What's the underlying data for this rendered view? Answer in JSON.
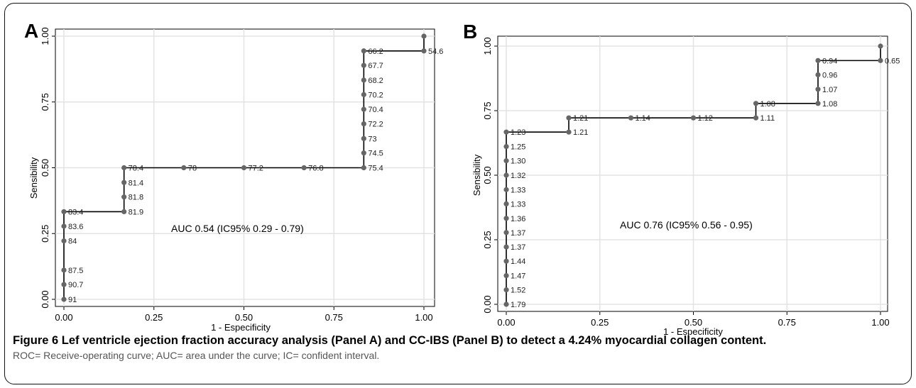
{
  "figure": {
    "caption_title": "Figure 6 Lef ventricle ejection fraction accuracy analysis (Panel A) and CC-IBS (Panel B) to detect a 4.24% myocardial collagen content.",
    "caption_note": "ROC= Receive-operating curve; AUC= area under the curve; IC= confident interval."
  },
  "chart_data": [
    {
      "type": "line",
      "panel_label": "A",
      "xlabel": "1 - Especificity",
      "ylabel": "Sensibility",
      "xlim": [
        0,
        1
      ],
      "ylim": [
        0,
        1
      ],
      "xticks": [
        "0.00",
        "0.25",
        "0.50",
        "0.75",
        "1.00"
      ],
      "yticks": [
        "0.00",
        "0.25",
        "0.50",
        "0.75",
        "1.00"
      ],
      "grid": true,
      "annotation": "AUC 0.54 (IC95% 0.29 - 0.79)",
      "points": [
        {
          "x": 0.0,
          "y": 0.0,
          "label": "91"
        },
        {
          "x": 0.0,
          "y": 0.056,
          "label": "90.7"
        },
        {
          "x": 0.0,
          "y": 0.111,
          "label": "87.5"
        },
        {
          "x": 0.0,
          "y": 0.222,
          "label": "84"
        },
        {
          "x": 0.0,
          "y": 0.278,
          "label": "83.6"
        },
        {
          "x": 0.0,
          "y": 0.333,
          "label": "83.4"
        },
        {
          "x": 0.167,
          "y": 0.333,
          "label": "81.9"
        },
        {
          "x": 0.167,
          "y": 0.389,
          "label": "81.8"
        },
        {
          "x": 0.167,
          "y": 0.444,
          "label": "81.4"
        },
        {
          "x": 0.167,
          "y": 0.5,
          "label": "78.4"
        },
        {
          "x": 0.333,
          "y": 0.5,
          "label": "78"
        },
        {
          "x": 0.5,
          "y": 0.5,
          "label": "77.2"
        },
        {
          "x": 0.667,
          "y": 0.5,
          "label": "76.8"
        },
        {
          "x": 0.833,
          "y": 0.5,
          "label": "75.4"
        },
        {
          "x": 0.833,
          "y": 0.556,
          "label": "74.5"
        },
        {
          "x": 0.833,
          "y": 0.611,
          "label": "73"
        },
        {
          "x": 0.833,
          "y": 0.667,
          "label": "72.2"
        },
        {
          "x": 0.833,
          "y": 0.722,
          "label": "70.4"
        },
        {
          "x": 0.833,
          "y": 0.778,
          "label": "70.2"
        },
        {
          "x": 0.833,
          "y": 0.833,
          "label": "68.2"
        },
        {
          "x": 0.833,
          "y": 0.889,
          "label": "67.7"
        },
        {
          "x": 0.833,
          "y": 0.944,
          "label": "66.2"
        },
        {
          "x": 1.0,
          "y": 0.944,
          "label": "54.6"
        },
        {
          "x": 1.0,
          "y": 1.0,
          "label": ""
        }
      ]
    },
    {
      "type": "line",
      "panel_label": "B",
      "xlabel": "1 - Especificity",
      "ylabel": "Sensibility",
      "xlim": [
        0,
        1
      ],
      "ylim": [
        0,
        1
      ],
      "xticks": [
        "0.00",
        "0.25",
        "0.50",
        "0.75",
        "1.00"
      ],
      "yticks": [
        "0.00",
        "0.25",
        "0.50",
        "0.75",
        "1.00"
      ],
      "grid": true,
      "annotation": "AUC 0.76 (IC95% 0.56 - 0.95)",
      "points": [
        {
          "x": 0.0,
          "y": 0.0,
          "label": "1.79"
        },
        {
          "x": 0.0,
          "y": 0.056,
          "label": "1.52"
        },
        {
          "x": 0.0,
          "y": 0.111,
          "label": "1.47"
        },
        {
          "x": 0.0,
          "y": 0.167,
          "label": "1.44"
        },
        {
          "x": 0.0,
          "y": 0.222,
          "label": "1.37"
        },
        {
          "x": 0.0,
          "y": 0.278,
          "label": "1.37"
        },
        {
          "x": 0.0,
          "y": 0.333,
          "label": "1.36"
        },
        {
          "x": 0.0,
          "y": 0.389,
          "label": "1.33"
        },
        {
          "x": 0.0,
          "y": 0.444,
          "label": "1.33"
        },
        {
          "x": 0.0,
          "y": 0.5,
          "label": "1.32"
        },
        {
          "x": 0.0,
          "y": 0.556,
          "label": "1.30"
        },
        {
          "x": 0.0,
          "y": 0.611,
          "label": "1.25"
        },
        {
          "x": 0.0,
          "y": 0.667,
          "label": "1.23"
        },
        {
          "x": 0.167,
          "y": 0.667,
          "label": "1.21"
        },
        {
          "x": 0.167,
          "y": 0.722,
          "label": "1.21"
        },
        {
          "x": 0.333,
          "y": 0.722,
          "label": "1.14"
        },
        {
          "x": 0.5,
          "y": 0.722,
          "label": "1.12"
        },
        {
          "x": 0.667,
          "y": 0.722,
          "label": "1.11"
        },
        {
          "x": 0.667,
          "y": 0.778,
          "label": "1.08"
        },
        {
          "x": 0.833,
          "y": 0.778,
          "label": "1.08"
        },
        {
          "x": 0.833,
          "y": 0.833,
          "label": "1.07"
        },
        {
          "x": 0.833,
          "y": 0.889,
          "label": "0.96"
        },
        {
          "x": 0.833,
          "y": 0.944,
          "label": "0.94"
        },
        {
          "x": 1.0,
          "y": 0.944,
          "label": "0.65"
        },
        {
          "x": 1.0,
          "y": 1.0,
          "label": ""
        }
      ]
    }
  ]
}
